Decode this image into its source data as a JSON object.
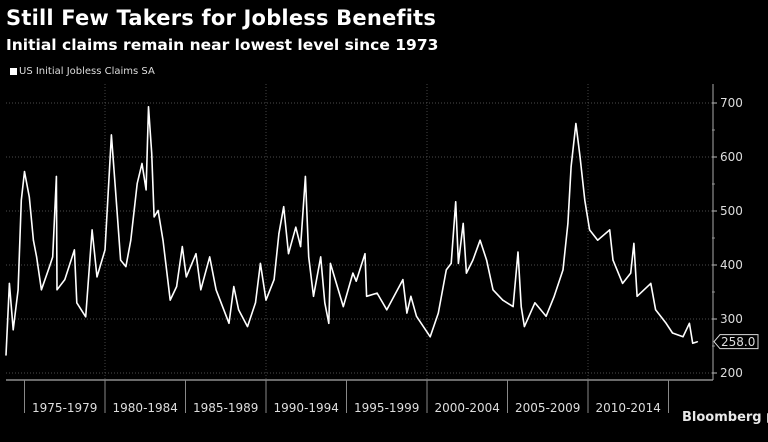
{
  "chart_data": {
    "type": "line",
    "title": "Still Few Takers for Jobless Benefits",
    "subtitle": "Initial claims remain near lowest level since 1973",
    "legend": "US Initial Jobless Claims SA",
    "source": "Bloomberg",
    "last_value_label": "258.0",
    "ylim": [
      200,
      700
    ],
    "yticks": [
      200,
      300,
      400,
      500,
      600,
      700
    ],
    "xlim": [
      1973.8,
      2017.1
    ],
    "x_categories": [
      "1975-1979",
      "1980-1984",
      "1985-1989",
      "1990-1994",
      "1995-1999",
      "2000-2004",
      "2005-2009",
      "2010-2014"
    ],
    "grid": true,
    "line_color": "#ffffff",
    "background": "#000000",
    "series": [
      {
        "x": [
          1973.85,
          1974.06,
          1974.3,
          1974.6,
          1974.8,
          1975.0,
          1975.3,
          1975.55,
          1975.75,
          1976.05,
          1976.55,
          1976.75,
          1976.98,
          1977.02,
          1977.5,
          1978.1,
          1978.25,
          1978.8,
          1979.2,
          1979.5,
          1980.0,
          1980.4,
          1980.65,
          1980.97,
          1981.3,
          1981.6,
          1982.0,
          1982.3,
          1982.55,
          1982.7,
          1982.9,
          1983.05,
          1983.3,
          1983.6,
          1984.05,
          1984.45,
          1984.8,
          1985.05,
          1985.65,
          1985.95,
          1986.5,
          1986.9,
          1987.7,
          1988.0,
          1988.3,
          1988.85,
          1989.35,
          1989.65,
          1990.0,
          1990.5,
          1990.8,
          1991.1,
          1991.4,
          1991.85,
          1992.15,
          1992.45,
          1992.65,
          1992.95,
          1993.4,
          1993.65,
          1993.9,
          1994.0,
          1994.8,
          1995.4,
          1995.6,
          1996.15,
          1996.25,
          1996.9,
          1997.5,
          1998.5,
          1998.75,
          1999.0,
          1999.35,
          2000.2,
          2000.7,
          2001.2,
          2001.5,
          2001.78,
          2001.95,
          2002.25,
          2002.45,
          2002.85,
          2003.3,
          2003.7,
          2004.1,
          2004.7,
          2005.35,
          2005.65,
          2005.85,
          2006.05,
          2006.7,
          2007.4,
          2007.9,
          2008.45,
          2008.75,
          2008.95,
          2009.25,
          2009.5,
          2009.8,
          2010.1,
          2010.6,
          2011.35,
          2011.55,
          2012.15,
          2012.65,
          2012.85,
          2013.05,
          2013.9,
          2014.2,
          2014.85,
          2015.25,
          2015.9,
          2016.3,
          2016.5,
          2016.8
        ],
        "y": [
          233,
          366,
          280,
          354,
          520,
          573,
          526,
          446,
          415,
          354,
          397,
          415,
          564,
          354,
          373,
          428,
          330,
          304,
          465,
          378,
          428,
          641,
          539,
          409,
          397,
          446,
          551,
          588,
          539,
          693,
          607,
          489,
          501,
          446,
          335,
          360,
          434,
          378,
          421,
          354,
          415,
          354,
          292,
          360,
          317,
          286,
          330,
          403,
          335,
          373,
          458,
          508,
          421,
          470,
          434,
          564,
          415,
          342,
          415,
          330,
          292,
          403,
          323,
          385,
          370,
          421,
          342,
          348,
          317,
          373,
          311,
          342,
          305,
          267,
          311,
          391,
          403,
          517,
          403,
          477,
          385,
          409,
          446,
          409,
          354,
          335,
          323,
          424,
          323,
          286,
          330,
          305,
          342,
          391,
          477,
          582,
          662,
          601,
          520,
          465,
          446,
          465,
          409,
          366,
          385,
          440,
          342,
          366,
          317,
          292,
          274,
          267,
          292,
          255,
          258
        ]
      }
    ]
  }
}
